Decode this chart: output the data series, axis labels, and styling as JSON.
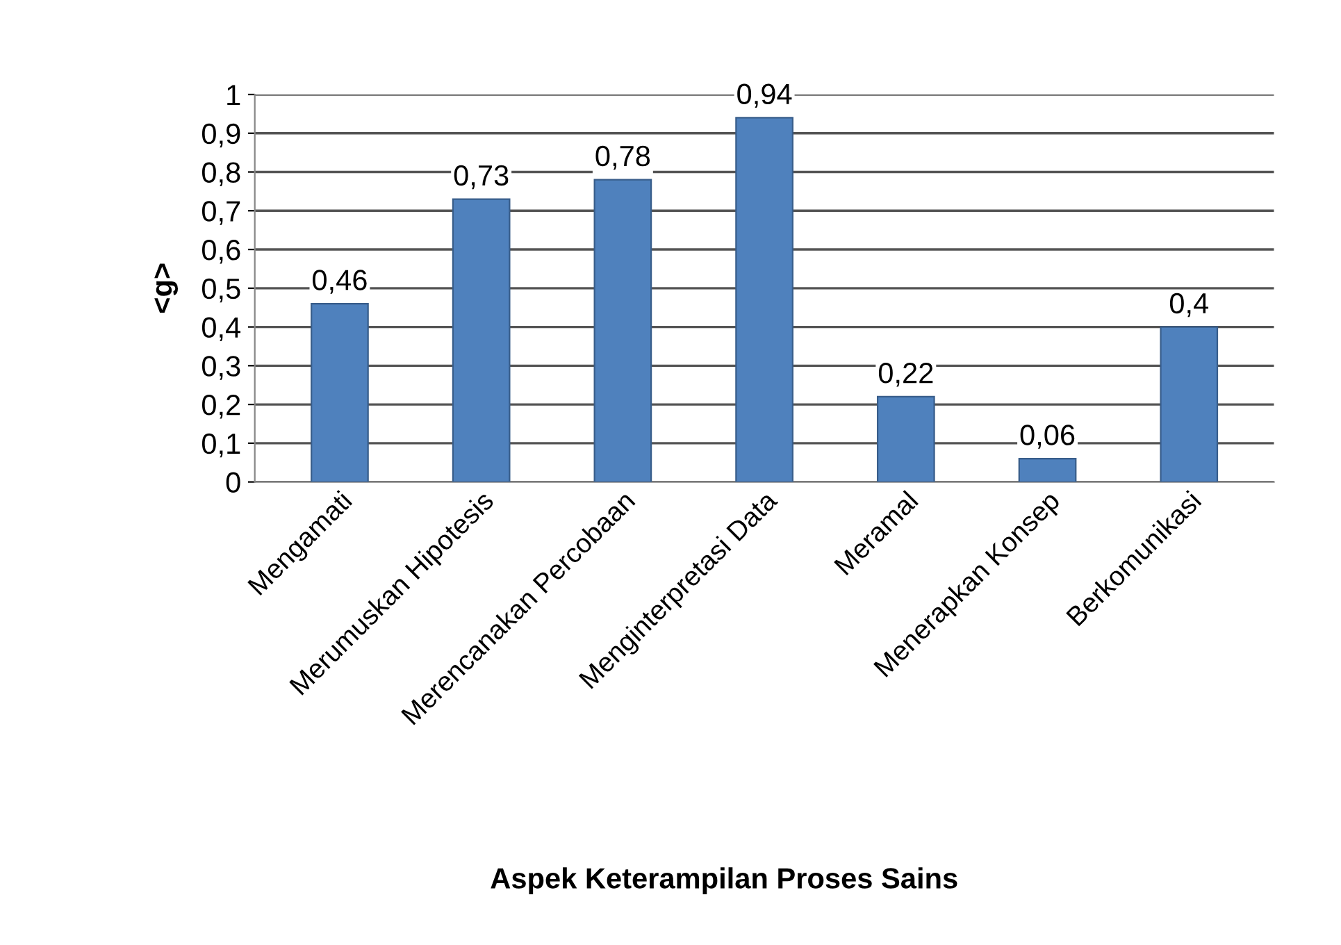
{
  "chart_data": {
    "type": "bar",
    "categories": [
      "Mengamati",
      "Merumuskan Hipotesis",
      "Merencanakan Percobaan",
      "Menginterpretasi Data",
      "Meramal",
      "Menerapkan Konsep",
      "Berkomunikasi"
    ],
    "values": [
      0.46,
      0.73,
      0.78,
      0.94,
      0.22,
      0.06,
      0.4
    ],
    "value_labels": [
      "0,46",
      "0,73",
      "0,78",
      "0,94",
      "0,22",
      "0,06",
      "0,4"
    ],
    "color": "#4f81bd",
    "xlabel": "Aspek Keterampilan Proses Sains",
    "ylabel": "<g>",
    "ylim": [
      0,
      1
    ],
    "yticks": [
      {
        "value": 0,
        "label": "0"
      },
      {
        "value": 0.1,
        "label": "0,1"
      },
      {
        "value": 0.2,
        "label": "0,2"
      },
      {
        "value": 0.3,
        "label": "0,3"
      },
      {
        "value": 0.4,
        "label": "0,4"
      },
      {
        "value": 0.5,
        "label": "0,5"
      },
      {
        "value": 0.6,
        "label": "0,6"
      },
      {
        "value": 0.7,
        "label": "0,7"
      },
      {
        "value": 0.8,
        "label": "0,8"
      },
      {
        "value": 0.9,
        "label": "0,9"
      },
      {
        "value": 1,
        "label": "1"
      }
    ],
    "grid": "y"
  }
}
